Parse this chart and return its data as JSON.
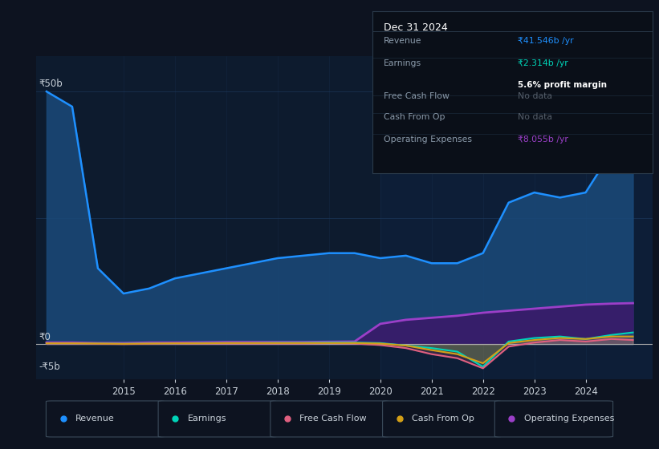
{
  "background_color": "#0d1320",
  "plot_bg_color": "#0d1b2e",
  "grid_color": "#1e3a5f",
  "text_color": "#c9d1d9",
  "years": [
    2013.5,
    2014.0,
    2014.5,
    2015.0,
    2015.5,
    2016.0,
    2016.5,
    2017.0,
    2017.5,
    2018.0,
    2018.5,
    2019.0,
    2019.5,
    2020.0,
    2020.5,
    2021.0,
    2021.5,
    2022.0,
    2022.5,
    2023.0,
    2023.5,
    2024.0,
    2024.5,
    2024.92
  ],
  "revenue": [
    50,
    47,
    15,
    10,
    11,
    13,
    14,
    15,
    16,
    17,
    17.5,
    18,
    18,
    17,
    17.5,
    16,
    16,
    18,
    28,
    30,
    29,
    30,
    38,
    41.5
  ],
  "earnings": [
    0.15,
    0.15,
    0.1,
    0.05,
    0.1,
    0.15,
    0.2,
    0.2,
    0.2,
    0.25,
    0.25,
    0.3,
    0.3,
    0.2,
    -0.3,
    -0.8,
    -1.5,
    -4.5,
    0.5,
    1.2,
    1.5,
    1.0,
    1.8,
    2.3
  ],
  "free_cash_flow": [
    0.1,
    0.1,
    0.05,
    0.0,
    0.05,
    0.1,
    0.1,
    0.1,
    0.1,
    0.1,
    0.1,
    0.15,
    0.1,
    -0.2,
    -0.8,
    -2.0,
    -2.8,
    -4.8,
    -0.5,
    0.3,
    0.8,
    0.5,
    1.0,
    0.8
  ],
  "cash_from_op": [
    0.15,
    0.15,
    0.1,
    0.05,
    0.1,
    0.15,
    0.15,
    0.2,
    0.2,
    0.2,
    0.2,
    0.2,
    0.2,
    0.1,
    -0.3,
    -1.2,
    -2.0,
    -3.8,
    0.2,
    0.8,
    1.2,
    1.0,
    1.5,
    1.5
  ],
  "operating_expenses": [
    0.3,
    0.3,
    0.2,
    0.2,
    0.3,
    0.3,
    0.35,
    0.4,
    0.4,
    0.4,
    0.4,
    0.45,
    0.5,
    4.0,
    4.8,
    5.2,
    5.6,
    6.2,
    6.6,
    7.0,
    7.4,
    7.8,
    8.0,
    8.1
  ],
  "revenue_color": "#1e90ff",
  "revenue_fill_color": "#1a4a7a",
  "earnings_color": "#00d4b8",
  "free_cash_flow_color": "#e06080",
  "cash_from_op_color": "#d4a017",
  "operating_expenses_color": "#9b3fc8",
  "operating_expenses_fill": "#3a1a6a",
  "ylim": [
    -7,
    57
  ],
  "xlim": [
    2013.3,
    2025.3
  ],
  "xtick_years": [
    2015,
    2016,
    2017,
    2018,
    2019,
    2020,
    2021,
    2022,
    2023,
    2024
  ],
  "selected_region_start": 2020.0,
  "info_box": {
    "title": "Dec 31 2024",
    "rows": [
      {
        "label": "Revenue",
        "value": "₹41.546b /yr",
        "value_color": "#1e90ff",
        "note": null
      },
      {
        "label": "Earnings",
        "value": "₹2.314b /yr",
        "value_color": "#00d4b8",
        "note": "5.6% profit margin"
      },
      {
        "label": "Free Cash Flow",
        "value": "No data",
        "value_color": "#555e6a",
        "note": null
      },
      {
        "label": "Cash From Op",
        "value": "No data",
        "value_color": "#555e6a",
        "note": null
      },
      {
        "label": "Operating Expenses",
        "value": "₹8.055b /yr",
        "value_color": "#9b3fc8",
        "note": null
      }
    ]
  },
  "legend_entries": [
    {
      "label": "Revenue",
      "color": "#1e90ff"
    },
    {
      "label": "Earnings",
      "color": "#00d4b8"
    },
    {
      "label": "Free Cash Flow",
      "color": "#e06080"
    },
    {
      "label": "Cash From Op",
      "color": "#d4a017"
    },
    {
      "label": "Operating Expenses",
      "color": "#9b3fc8"
    }
  ]
}
